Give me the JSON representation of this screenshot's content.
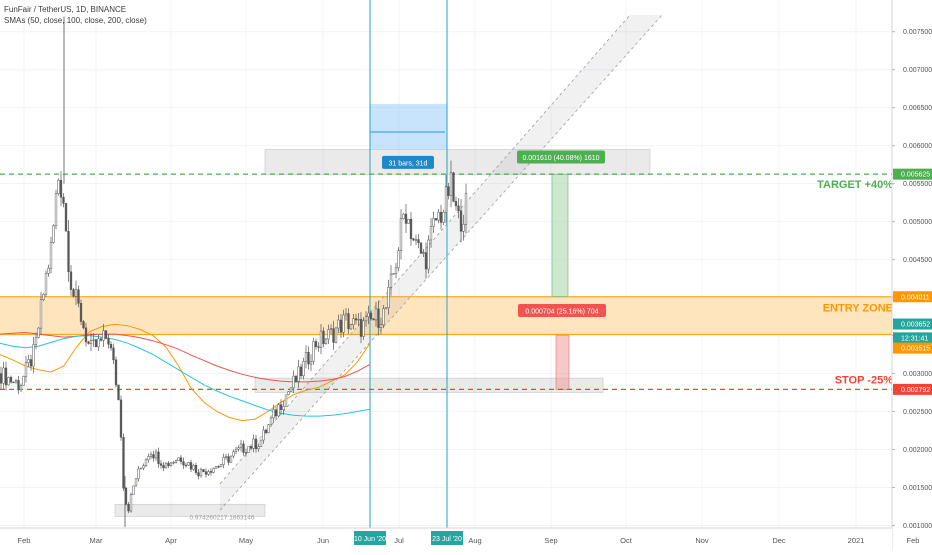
{
  "chart_data": {
    "type": "candlestick",
    "title": "FunFair / TetherUS, 1D, BINANCE",
    "indicator_label": "SMAs (50, close, 100, close, 200, close)",
    "x_axis": {
      "ticks": [
        "Feb",
        "Mar",
        "Apr",
        "May",
        "Jun",
        "Jul",
        "Aug",
        "Sep",
        "Oct",
        "Nov",
        "Dec",
        "2021",
        "Feb"
      ],
      "date_labels": [
        "10 Jun '20",
        "23 Jul '20"
      ]
    },
    "y_axis": {
      "ylim": [
        0.00095,
        0.0077
      ],
      "ticks": [
        "0.001000",
        "0.001500",
        "0.002000",
        "0.002500",
        "0.003000",
        "0.003500",
        "0.004000",
        "0.004500",
        "0.005000",
        "0.005500",
        "0.006000",
        "0.006500",
        "0.007000",
        "0.007500"
      ],
      "ticks_values": [
        0.001,
        0.0015,
        0.002,
        0.0025,
        0.003,
        0.0035,
        0.004,
        0.0045,
        0.005,
        0.0055,
        0.006,
        0.0065,
        0.007,
        0.0075
      ],
      "price_labels": [
        {
          "text": "0.005625",
          "value": 0.005625,
          "color": "#4caf50"
        },
        {
          "text": "0.004011",
          "value": 0.004011,
          "color": "#ff9800"
        },
        {
          "text": "0.003652",
          "value": 0.003652,
          "color": "#26a69a"
        },
        {
          "text": "12:31:41",
          "value": 0.00347,
          "color": "#26a69a"
        },
        {
          "text": "0.003515",
          "value": 0.003335,
          "color": "#ff9800"
        },
        {
          "text": "0.002792",
          "value": 0.002792,
          "color": "#f44336"
        }
      ]
    },
    "levels": {
      "target": {
        "label": "TARGET +40%",
        "value": 0.005625,
        "color": "#4caf50"
      },
      "entry_top": 0.004011,
      "entry_bottom": 0.003515,
      "entry_label": "ENTRY ZONE",
      "entry_color": "#ff9800",
      "stop": {
        "label": "STOP -25%",
        "value": 0.002792,
        "color": "#f44336"
      }
    },
    "annotations": {
      "bars_range": "31 bars, 31d",
      "gain": "0.001610 (40.08%) 1610",
      "loss": "0.000704 (25.16%) 704",
      "low_label": "0.974260217 1863146"
    },
    "series": [
      {
        "name": "SMA 50",
        "color": "#ff9800",
        "values": [
          0.00325,
          0.00318,
          0.0031,
          0.00305,
          0.00302,
          0.0031,
          0.00335,
          0.00355,
          0.00362,
          0.00365,
          0.00363,
          0.00358,
          0.0035,
          0.00335,
          0.0031,
          0.0028,
          0.00262,
          0.0025,
          0.00242,
          0.00238,
          0.0024,
          0.0025,
          0.00262,
          0.00272,
          0.00278,
          0.00282,
          0.0029,
          0.00298,
          0.00315,
          0.0034
        ]
      },
      {
        "name": "SMA 100",
        "color": "#ef5350",
        "values": [
          0.00352,
          0.00353,
          0.00354,
          0.00352,
          0.0035,
          0.00348,
          0.00349,
          0.00351,
          0.00352,
          0.00352,
          0.0035,
          0.00347,
          0.00343,
          0.00338,
          0.00332,
          0.00324,
          0.00317,
          0.0031,
          0.00304,
          0.00299,
          0.00295,
          0.00292,
          0.0029,
          0.00289,
          0.00289,
          0.0029,
          0.00292,
          0.00296,
          0.00303,
          0.00312
        ]
      },
      {
        "name": "SMA 200",
        "color": "#26c6da",
        "values": [
          0.0034,
          0.00336,
          0.00334,
          0.00336,
          0.00341,
          0.00346,
          0.00349,
          0.0035,
          0.00348,
          0.00345,
          0.0034,
          0.00333,
          0.00325,
          0.00315,
          0.00305,
          0.00295,
          0.00285,
          0.00277,
          0.0027,
          0.00264,
          0.00258,
          0.00252,
          0.00248,
          0.00245,
          0.00244,
          0.00244,
          0.00245,
          0.00247,
          0.0025,
          0.00253
        ]
      }
    ],
    "legend": "top-left",
    "grid": true
  }
}
